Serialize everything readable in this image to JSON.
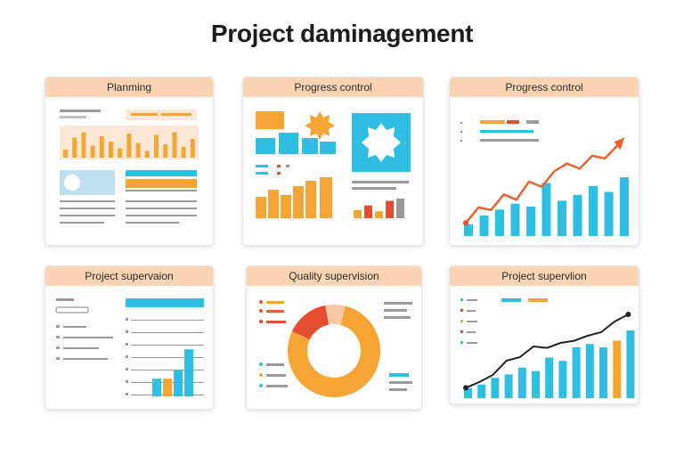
{
  "page": {
    "title": "Project daminagement"
  },
  "colors": {
    "orange": "#f5a534",
    "cyan": "#2ebfe2",
    "red": "#e44d2e",
    "gray": "#9a9a9a",
    "header": "#fbd4b3"
  },
  "cards": [
    {
      "title": "Planming"
    },
    {
      "title": "Progress control"
    },
    {
      "title": "Progress control"
    },
    {
      "title": "Project supervaion"
    },
    {
      "title": "Quality supervision"
    },
    {
      "title": "Project supervlion"
    }
  ],
  "widgets": {
    "planning_bars": [
      0.3,
      0.75,
      0.95,
      0.45,
      0.8,
      0.6,
      0.35,
      0.9,
      0.55,
      0.25,
      0.85,
      0.5,
      0.95,
      0.4,
      0.7
    ],
    "progress_small_bars": [
      0.35,
      0.55,
      0.3,
      0.75,
      0.85
    ],
    "progress_growth_bars": [
      0.2,
      0.35,
      0.45,
      0.55,
      0.5,
      0.9,
      0.6,
      0.7,
      0.85,
      0.75,
      1.0
    ],
    "progress_growth_line": [
      0.15,
      0.45,
      0.4,
      0.7,
      0.6,
      0.95,
      0.85,
      1.15,
      1.3,
      1.2,
      1.45,
      1.4,
      1.65
    ],
    "supervision_bars": [
      0.3,
      0.3,
      0.45,
      0.8
    ],
    "quality_donut": [
      {
        "color": "#f5a534",
        "value": 0.78
      },
      {
        "color": "#e44d2e",
        "value": 0.15
      },
      {
        "color": "#f6c8a8",
        "value": 0.07
      }
    ],
    "supervision_growth_bars": [
      0.15,
      0.2,
      0.3,
      0.35,
      0.45,
      0.4,
      0.6,
      0.55,
      0.75,
      0.8,
      0.75,
      0.85,
      1.0
    ],
    "supervision_growth_line": [
      0.12,
      0.2,
      0.3,
      0.5,
      0.55,
      0.7,
      0.68,
      0.75,
      0.78,
      0.85,
      0.9,
      1.05,
      1.15
    ]
  }
}
